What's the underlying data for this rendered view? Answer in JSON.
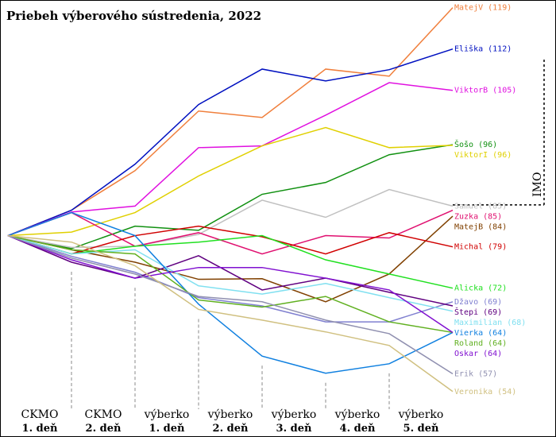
{
  "chart_data": {
    "type": "line",
    "title": "Priebeh výberového sústredenia, 2022",
    "categories": [
      null,
      [
        "CKMO",
        "1. deň"
      ],
      [
        "CKMO",
        "2. deň"
      ],
      [
        "výberko",
        "1. deň"
      ],
      [
        "výberko",
        "2. deň"
      ],
      [
        "výberko",
        "3. deň"
      ],
      [
        "výberko",
        "4. deň"
      ],
      [
        "výberko",
        "5. deň"
      ]
    ],
    "ylim": [
      46.3,
      120.3
    ],
    "annotation": {
      "text": "IMO",
      "value": 85.6
    },
    "series": [
      {
        "name": "MatejV",
        "label": "MatejV (119)",
        "color": "#f07f3c",
        "values": [
          80.4,
          84.7,
          91.4,
          101.5,
          100.4,
          108.6,
          107.4,
          119
        ]
      },
      {
        "name": "Eliška",
        "label": "Eliška (112)",
        "color": "#0010c0",
        "values": [
          80.4,
          84.7,
          92.5,
          102.6,
          108.6,
          106.6,
          108.5,
          112
        ]
      },
      {
        "name": "ViktorB",
        "label": "ViktorB (105)",
        "color": "#e010e0",
        "values": [
          80.4,
          84.4,
          85.4,
          95.3,
          95.6,
          100.8,
          106.3,
          105
        ]
      },
      {
        "name": "Šošo",
        "label": "Šošo (96)",
        "color": "#109010",
        "values": [
          80.4,
          78.2,
          82.0,
          81.3,
          87.4,
          89.4,
          94.1,
          95.8
        ]
      },
      {
        "name": "ViktorI",
        "label": "ViktorI (96)",
        "color": "#e0d000",
        "values": [
          80.4,
          81.0,
          84.3,
          90.5,
          95.6,
          98.7,
          95.3,
          95.7
        ]
      },
      {
        "name": "Samuel",
        "label": "Samuel (85)",
        "color": "#c0c0c0",
        "values": [
          80.4,
          78.4,
          78.6,
          80.6,
          86.4,
          83.5,
          88.2,
          85.4
        ]
      },
      {
        "name": "Zuzka",
        "label": "Zuzka (85)",
        "color": "#e01070",
        "values": [
          80.4,
          84.3,
          78.6,
          80.9,
          77.3,
          80.4,
          80.0,
          84.7
        ]
      },
      {
        "name": "MatejB",
        "label": "MatejB (84)",
        "color": "#804000",
        "values": [
          80.4,
          78.0,
          75.9,
          73.0,
          73.1,
          69.2,
          73.9,
          83.7
        ]
      },
      {
        "name": "Michal",
        "label": "Michal (79)",
        "color": "#d00000",
        "values": [
          80.4,
          77.3,
          80.4,
          82.0,
          80.2,
          77.3,
          80.9,
          78.5
        ]
      },
      {
        "name": "Alicka",
        "label": "Alicka (72)",
        "color": "#20e020",
        "values": [
          80.4,
          77.3,
          78.6,
          79.3,
          80.4,
          76.3,
          73.9,
          71.5
        ]
      },
      {
        "name": "Džavo",
        "label": "Džavo (69)",
        "color": "#8080d0",
        "values": [
          80.4,
          76.9,
          74.2,
          69.9,
          68.5,
          65.8,
          65.8,
          69.2
        ]
      },
      {
        "name": "Štepi",
        "label": "Štepi (69)",
        "color": "#600080",
        "values": [
          80.4,
          75.9,
          73.2,
          77.0,
          71.2,
          73.2,
          70.8,
          68.5
        ]
      },
      {
        "name": "Maximilian",
        "label": "Maximilian (68)",
        "color": "#80e0f0",
        "values": [
          80.4,
          77.3,
          78.0,
          71.9,
          70.5,
          72.3,
          69.9,
          67.6
        ]
      },
      {
        "name": "Vierka",
        "label": "Vierka (64)",
        "color": "#1080e0",
        "values": [
          80.4,
          84.3,
          80.4,
          68.8,
          60.0,
          57.1,
          58.7,
          64
        ]
      },
      {
        "name": "Roland",
        "label": "Roland (64)",
        "color": "#60b020",
        "values": [
          80.4,
          78.0,
          77.3,
          69.5,
          68.3,
          70.1,
          65.8,
          64
        ]
      },
      {
        "name": "Oskar",
        "label": "Oskar (64)",
        "color": "#8010d0",
        "values": [
          80.4,
          76.3,
          73.2,
          75.0,
          75.0,
          73.2,
          71.2,
          64
        ]
      },
      {
        "name": "Erik",
        "label": "Erik (57)",
        "color": "#9090b0",
        "values": [
          80.4,
          76.6,
          73.9,
          70.1,
          69.2,
          66.1,
          63.8,
          57
        ]
      },
      {
        "name": "Veronika",
        "label": "Veronika (54)",
        "color": "#d0c080",
        "values": [
          80.4,
          79.3,
          75.3,
          67.9,
          66.1,
          64.1,
          61.8,
          54
        ]
      }
    ]
  }
}
